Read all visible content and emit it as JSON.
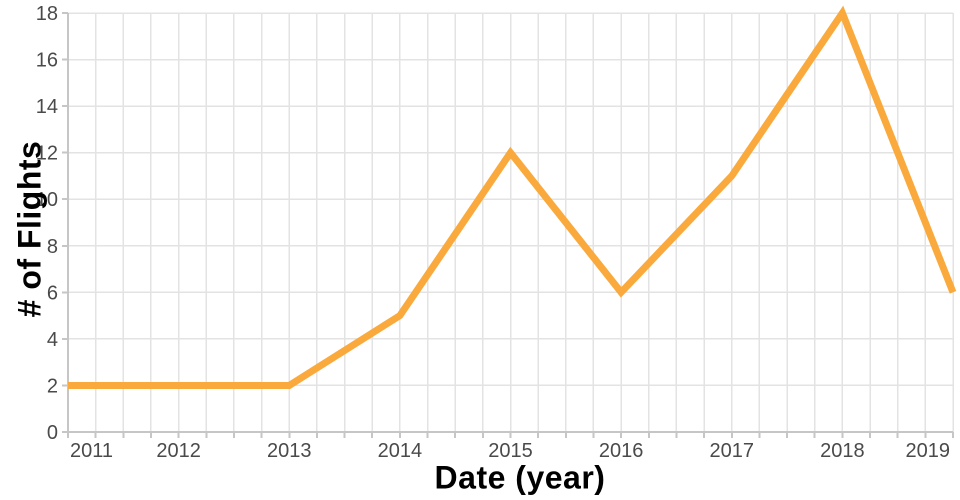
{
  "chart_data": {
    "type": "line",
    "title": "",
    "xlabel": "Date (year)",
    "ylabel": "# of Flights",
    "x": [
      2011,
      2012,
      2013,
      2014,
      2015,
      2016,
      2017,
      2018,
      2019
    ],
    "values": [
      2,
      2,
      2,
      5,
      12,
      6,
      11,
      18,
      6
    ],
    "x_tick_labels": [
      "2011",
      "2012",
      "2013",
      "2014",
      "2015",
      "2016",
      "2017",
      "2018",
      "2019"
    ],
    "y_ticks": [
      0,
      2,
      4,
      6,
      8,
      10,
      12,
      14,
      16,
      18
    ],
    "y_tick_labels": [
      "0",
      "2",
      "4",
      "6",
      "8",
      "10",
      "12",
      "14",
      "16",
      "18"
    ],
    "xlim": [
      2011,
      2019
    ],
    "ylim": [
      0,
      18
    ],
    "x_minor_tick_step": 0.25,
    "grid": "on",
    "legend": "none",
    "line_color": "#FAAA3C",
    "line_width": 7,
    "grid_color": "#E3E3E3",
    "axis_color": "#C6C6C6",
    "tick_label_color": "#4A4A4A",
    "axis_title_color": "#3B3B3B",
    "background_color": "#FFFFFF"
  }
}
